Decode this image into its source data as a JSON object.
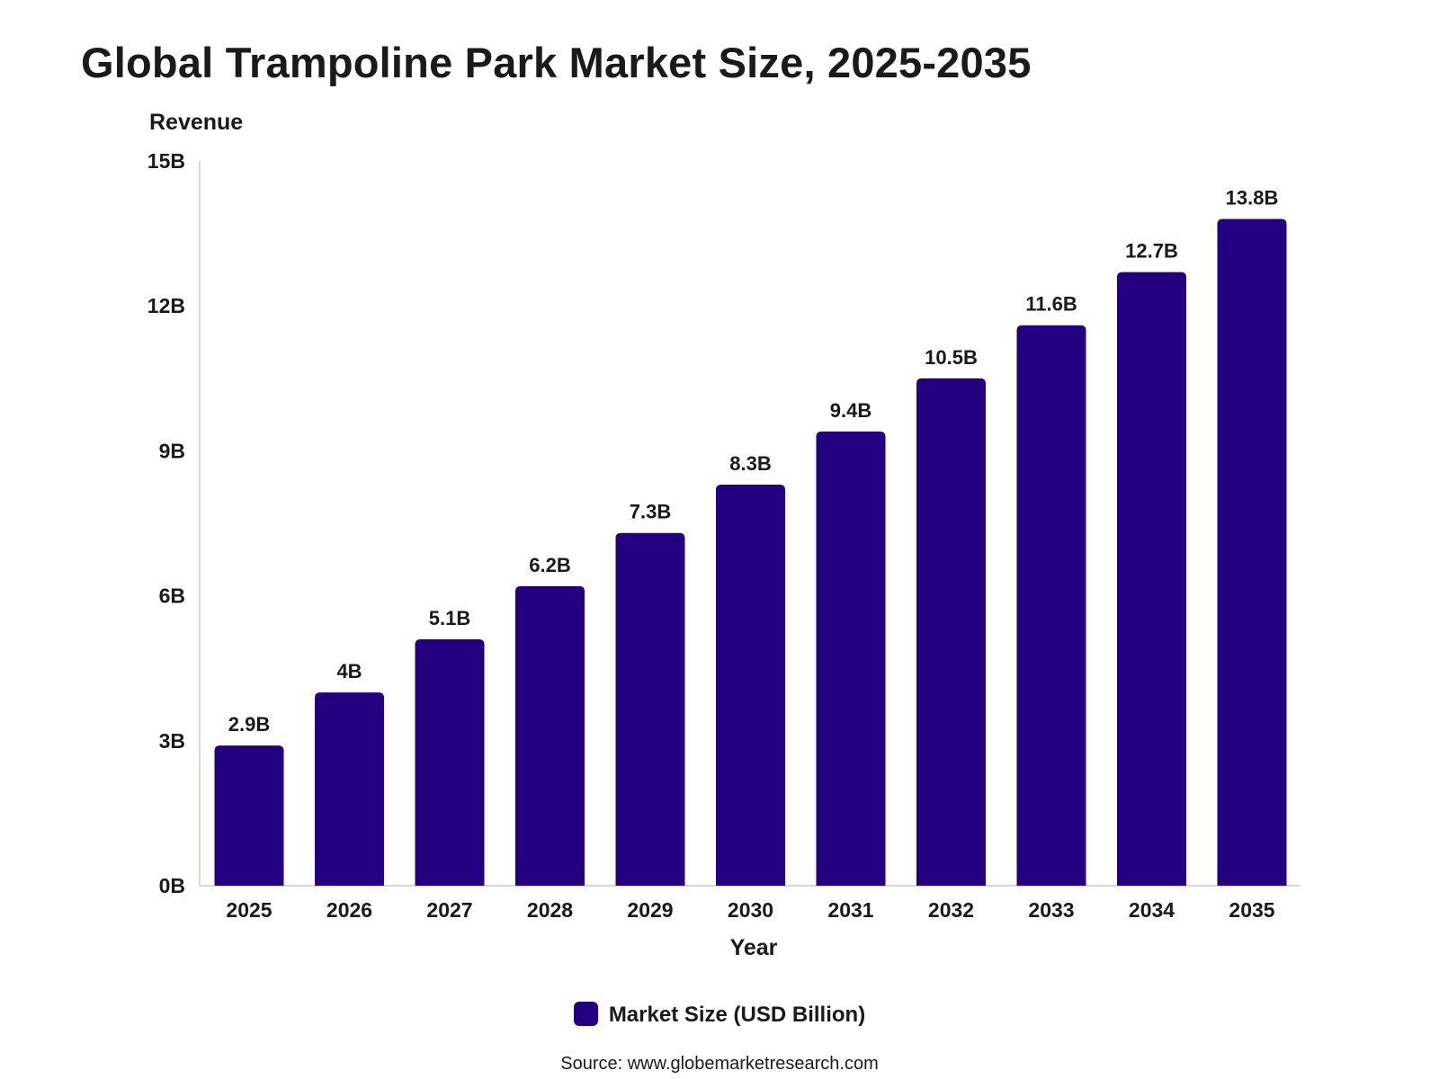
{
  "chart_data": {
    "type": "bar",
    "title": "Global Trampoline Park Market Size, 2025-2035",
    "ylabel": "Revenue",
    "xlabel": "Year",
    "categories": [
      "2025",
      "2026",
      "2027",
      "2028",
      "2029",
      "2030",
      "2031",
      "2032",
      "2033",
      "2034",
      "2035"
    ],
    "series": [
      {
        "name": "Market Size (USD Billion)",
        "values": [
          2.9,
          4,
          5.1,
          6.2,
          7.3,
          8.3,
          9.4,
          10.5,
          11.6,
          12.7,
          13.8
        ],
        "data_labels": [
          "2.9B",
          "4B",
          "5.1B",
          "6.2B",
          "7.3B",
          "8.3B",
          "9.4B",
          "10.5B",
          "11.6B",
          "12.7B",
          "13.8B"
        ],
        "color": "#220080"
      }
    ],
    "ylim": [
      0,
      15
    ],
    "yticks": [
      0,
      3,
      6,
      9,
      12,
      15
    ],
    "ytick_labels": [
      "0B",
      "3B",
      "6B",
      "9B",
      "12B",
      "15B"
    ],
    "grid": false,
    "legend_position": "bottom-center"
  },
  "source": "Source: www.globemarketresearch.com"
}
